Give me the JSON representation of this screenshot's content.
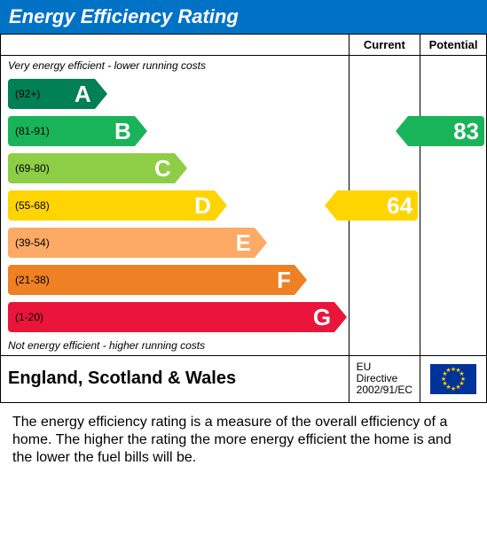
{
  "title": "Energy Efficiency Rating",
  "title_bar_color": "#0072c6",
  "header": {
    "current": "Current",
    "potential": "Potential"
  },
  "captions": {
    "top": "Very energy efficient - lower running costs",
    "bottom": "Not energy efficient - higher running costs"
  },
  "bands": [
    {
      "letter": "A",
      "range": "(92+)",
      "color": "#008054",
      "width_pct": 26
    },
    {
      "letter": "B",
      "range": "(81-91)",
      "color": "#19b459",
      "width_pct": 38
    },
    {
      "letter": "C",
      "range": "(69-80)",
      "color": "#8dce46",
      "width_pct": 50
    },
    {
      "letter": "D",
      "range": "(55-68)",
      "color": "#ffd500",
      "width_pct": 62
    },
    {
      "letter": "E",
      "range": "(39-54)",
      "color": "#fcaa65",
      "width_pct": 74
    },
    {
      "letter": "F",
      "range": "(21-38)",
      "color": "#ef8023",
      "width_pct": 86
    },
    {
      "letter": "G",
      "range": "(1-20)",
      "color": "#e9153b",
      "width_pct": 98
    }
  ],
  "ratings": {
    "current": {
      "value": "64",
      "band_index": 3,
      "color": "#ffd500"
    },
    "potential": {
      "value": "83",
      "band_index": 1,
      "color": "#19b459"
    }
  },
  "footer": {
    "region": "England, Scotland & Wales",
    "directive_line1": "EU Directive",
    "directive_line2": "2002/91/EC",
    "flag_bg": "#003399",
    "flag_star_color": "#ffcc00"
  },
  "description": "The energy efficiency rating is a measure of the overall efficiency of a home. The higher the rating the more energy efficient the home is and the lower the fuel bills will be."
}
